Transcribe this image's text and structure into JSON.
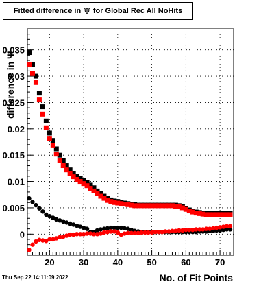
{
  "title": {
    "prefix": "Fitted difference in",
    "symbol": "Ψ",
    "suffix": "for Global Rec All NoHits"
  },
  "timestamp": "Thu Sep 22 14:11:09 2022",
  "chart_data": {
    "type": "scatter",
    "title": "Fitted difference in Ψ for Global Rec All NoHits",
    "xlabel": "No. of Fit Points",
    "ylabel": "difference in Ψ",
    "xlim": [
      13.5,
      74
    ],
    "ylim": [
      -0.004,
      0.039
    ],
    "x_ticks": [
      20,
      30,
      40,
      50,
      60,
      70
    ],
    "y_ticks": [
      0,
      0.005,
      0.01,
      0.015,
      0.02,
      0.025,
      0.03,
      0.035
    ],
    "y_tick_labels": [
      "0",
      "0.005",
      "0.01",
      "0.015",
      "0.02",
      "0.025",
      "0.03",
      "0.035"
    ],
    "grid": true,
    "series": [
      {
        "color": "#000000",
        "marker": "square",
        "x": [
          14,
          15,
          16,
          17,
          18,
          19,
          20,
          21,
          22,
          23,
          24,
          25,
          26,
          27,
          28,
          29,
          30,
          31,
          32,
          33,
          34,
          35,
          36,
          37,
          38,
          39,
          40,
          41,
          42,
          43,
          44,
          45,
          46,
          47,
          48,
          49,
          50,
          51,
          52,
          53,
          54,
          55,
          56,
          57,
          58,
          59,
          60,
          61,
          62,
          63,
          64,
          65,
          66,
          67,
          68,
          69,
          70,
          71,
          72,
          73
        ],
        "y": [
          0.0345,
          0.0322,
          0.03,
          0.0268,
          0.0242,
          0.0215,
          0.0192,
          0.0178,
          0.0162,
          0.015,
          0.014,
          0.013,
          0.0122,
          0.0115,
          0.011,
          0.0106,
          0.0102,
          0.0098,
          0.0093,
          0.0088,
          0.0082,
          0.0077,
          0.0072,
          0.0068,
          0.0065,
          0.0063,
          0.0062,
          0.006,
          0.0059,
          0.0058,
          0.0057,
          0.0056,
          0.0055,
          0.0055,
          0.0055,
          0.0055,
          0.0055,
          0.0055,
          0.0055,
          0.0055,
          0.0055,
          0.0055,
          0.0055,
          0.0055,
          0.0054,
          0.0052,
          0.0049,
          0.0046,
          0.0044,
          0.0042,
          0.0041,
          0.004,
          0.0039,
          0.0039,
          0.0039,
          0.0039,
          0.0039,
          0.0039,
          0.0039,
          0.0039
        ]
      },
      {
        "color": "#ff0000",
        "marker": "square",
        "x": [
          14,
          15,
          16,
          17,
          18,
          19,
          20,
          21,
          22,
          23,
          24,
          25,
          26,
          27,
          28,
          29,
          30,
          31,
          32,
          33,
          34,
          35,
          36,
          37,
          38,
          39,
          40,
          41,
          42,
          43,
          44,
          45,
          46,
          47,
          48,
          49,
          50,
          51,
          52,
          53,
          54,
          55,
          56,
          57,
          58,
          59,
          60,
          61,
          62,
          63,
          64,
          65,
          66,
          67,
          68,
          69,
          70,
          71,
          72,
          73
        ],
        "y": [
          0.0322,
          0.0305,
          0.0288,
          0.0255,
          0.0228,
          0.0202,
          0.0182,
          0.0168,
          0.0152,
          0.014,
          0.013,
          0.0122,
          0.0115,
          0.0109,
          0.0104,
          0.01,
          0.0096,
          0.0092,
          0.0087,
          0.0082,
          0.0077,
          0.0072,
          0.0068,
          0.0064,
          0.0062,
          0.006,
          0.0059,
          0.0058,
          0.0057,
          0.0056,
          0.0055,
          0.0054,
          0.0054,
          0.0054,
          0.0054,
          0.0054,
          0.0054,
          0.0054,
          0.0054,
          0.0054,
          0.0054,
          0.0054,
          0.0054,
          0.0053,
          0.0052,
          0.005,
          0.0047,
          0.0044,
          0.0042,
          0.004,
          0.0039,
          0.0038,
          0.0037,
          0.0037,
          0.0037,
          0.0037,
          0.0037,
          0.0037,
          0.0037,
          0.0037
        ]
      },
      {
        "color": "#000000",
        "marker": "circle",
        "x": [
          14,
          15,
          16,
          17,
          18,
          19,
          20,
          21,
          22,
          23,
          24,
          25,
          26,
          27,
          28,
          29,
          30,
          31,
          32,
          33,
          34,
          35,
          36,
          37,
          38,
          39,
          40,
          41,
          42,
          43,
          44,
          45,
          46,
          47,
          48,
          49,
          50,
          51,
          52,
          53,
          54,
          55,
          56,
          57,
          58,
          59,
          60,
          61,
          62,
          63,
          64,
          65,
          66,
          67,
          68,
          69,
          70,
          71,
          72,
          73
        ],
        "y": [
          0.0068,
          0.0061,
          0.0055,
          0.0049,
          0.0043,
          0.0037,
          0.0034,
          0.0031,
          0.0028,
          0.0026,
          0.0024,
          0.0022,
          0.002,
          0.0018,
          0.0016,
          0.0014,
          0.0012,
          0.001,
          0.0004,
          0.0004,
          0.0007,
          0.0009,
          0.001,
          0.0011,
          0.0012,
          0.0012,
          0.0012,
          0.0012,
          0.0011,
          0.001,
          0.0008,
          0.0006,
          0.0005,
          0.0004,
          0.0004,
          0.0004,
          0.0004,
          0.0004,
          0.0004,
          0.0004,
          0.0004,
          0.0004,
          0.0004,
          0.0004,
          0.0004,
          0.0004,
          0.0004,
          0.0004,
          0.0004,
          0.0004,
          0.0005,
          0.0005,
          0.0005,
          0.0006,
          0.0006,
          0.0007,
          0.0007,
          0.0008,
          0.0009,
          0.0009
        ]
      },
      {
        "color": "#ff0000",
        "marker": "circle",
        "x": [
          14,
          15,
          16,
          17,
          18,
          19,
          20,
          21,
          22,
          23,
          24,
          25,
          26,
          27,
          28,
          29,
          30,
          31,
          32,
          33,
          34,
          35,
          36,
          37,
          38,
          39,
          40,
          41,
          42,
          43,
          44,
          45,
          46,
          47,
          48,
          49,
          50,
          51,
          52,
          53,
          54,
          55,
          56,
          57,
          58,
          59,
          60,
          61,
          62,
          63,
          64,
          65,
          66,
          67,
          68,
          69,
          70,
          71,
          72,
          73
        ],
        "y": [
          -0.003,
          -0.002,
          -0.0014,
          -0.0011,
          -0.0012,
          -0.0013,
          -0.001,
          -0.001,
          -0.0008,
          -0.0006,
          -0.0005,
          -0.0003,
          -0.0001,
          -0.0001,
          0.0,
          0.0,
          0.0,
          0.0001,
          0.0001,
          0.0,
          0.0,
          0.0001,
          0.0003,
          0.0004,
          0.0005,
          0.0005,
          0.0003,
          -0.0001,
          0.0001,
          0.0002,
          0.0002,
          0.0002,
          0.0002,
          0.0003,
          0.0003,
          0.0003,
          0.0003,
          0.0004,
          0.0004,
          0.0004,
          0.0005,
          0.0005,
          0.0006,
          0.0006,
          0.0007,
          0.0007,
          0.0008,
          0.0008,
          0.0008,
          0.0009,
          0.0009,
          0.0009,
          0.001,
          0.001,
          0.0011,
          0.0012,
          0.0013,
          0.0014,
          0.0015,
          0.0015
        ]
      }
    ]
  }
}
